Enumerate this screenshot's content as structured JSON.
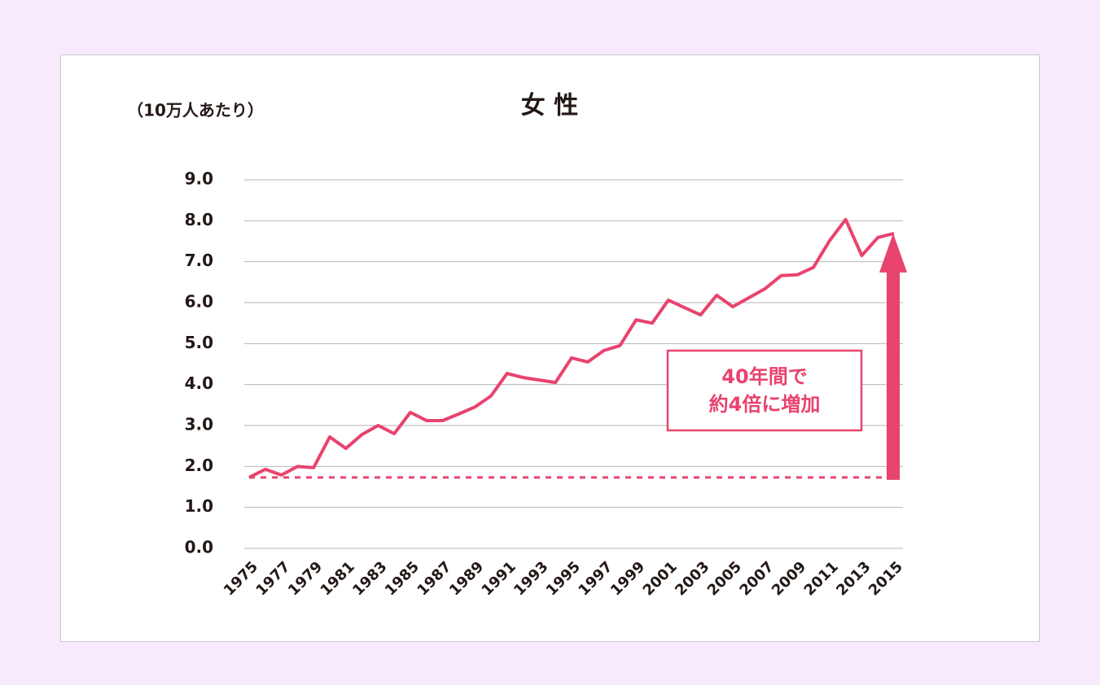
{
  "chart_data": {
    "type": "line",
    "title": "女 性",
    "y_label": "（10万人あたり）",
    "x": [
      1975,
      1976,
      1977,
      1978,
      1979,
      1980,
      1981,
      1982,
      1983,
      1984,
      1985,
      1986,
      1987,
      1988,
      1989,
      1990,
      1991,
      1992,
      1993,
      1994,
      1995,
      1996,
      1997,
      1998,
      1999,
      2000,
      2001,
      2002,
      2003,
      2004,
      2005,
      2006,
      2007,
      2008,
      2009,
      2010,
      2011,
      2012,
      2013,
      2014,
      2015
    ],
    "values": [
      1.73,
      1.93,
      1.79,
      2.0,
      1.97,
      2.72,
      2.44,
      2.78,
      3.0,
      2.8,
      3.32,
      3.12,
      3.12,
      3.28,
      3.45,
      3.72,
      4.27,
      4.17,
      4.11,
      4.05,
      4.65,
      4.55,
      4.83,
      4.95,
      5.58,
      5.5,
      6.06,
      5.88,
      5.7,
      6.18,
      5.9,
      6.12,
      6.34,
      6.66,
      6.68,
      6.86,
      7.51,
      8.03,
      7.15,
      7.59,
      7.69
    ],
    "color": "#e8436e",
    "xlim": [
      1975,
      2015
    ],
    "xticks": [
      1975,
      1977,
      1979,
      1981,
      1983,
      1985,
      1987,
      1989,
      1991,
      1993,
      1995,
      1997,
      1999,
      2001,
      2003,
      2005,
      2007,
      2009,
      2011,
      2013,
      2015
    ],
    "ylim": [
      0,
      9
    ],
    "yticks": [
      {
        "value": 0,
        "label": "0.0"
      },
      {
        "value": 1,
        "label": "1.0"
      },
      {
        "value": 2,
        "label": "2.0"
      },
      {
        "value": 3,
        "label": "3.0"
      },
      {
        "value": 4,
        "label": "4.0"
      },
      {
        "value": 5,
        "label": "5.0"
      },
      {
        "value": 6,
        "label": "6.0"
      },
      {
        "value": 7,
        "label": "7.0"
      },
      {
        "value": 8,
        "label": "8.0"
      },
      {
        "value": 9,
        "label": "9.0"
      }
    ],
    "grid": true,
    "annotation": [
      "40年間で",
      "約4倍に増加"
    ]
  }
}
